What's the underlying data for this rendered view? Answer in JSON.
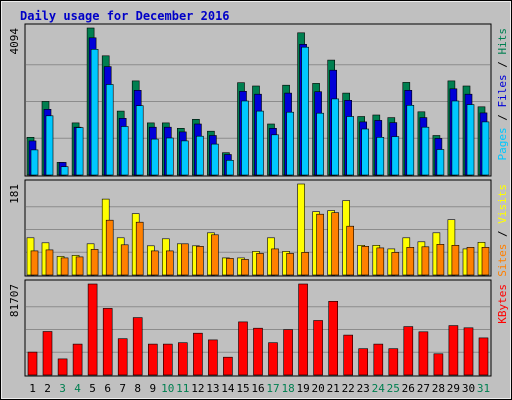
{
  "title": "Daily usage for December 2016",
  "colors": {
    "background": "#c0c0c0",
    "frame": "#000000",
    "gridline": "#8c8c8c",
    "hits": "#007f50",
    "files": "#0000d8",
    "pages": "#00c8ff",
    "visits": "#ffff00",
    "sites": "#ff8000",
    "kbytes": "#ff0000",
    "weekday_label": "#000000",
    "weekend_label": "#007f50"
  },
  "chart_data": {
    "type": "bar",
    "title": "Daily usage for December 2016",
    "categories": [
      "1",
      "2",
      "3",
      "4",
      "5",
      "6",
      "7",
      "8",
      "9",
      "10",
      "11",
      "12",
      "13",
      "14",
      "15",
      "16",
      "17",
      "18",
      "19",
      "20",
      "21",
      "22",
      "23",
      "24",
      "25",
      "26",
      "27",
      "28",
      "29",
      "30",
      "31"
    ],
    "weekend_days": [
      "3",
      "4",
      "10",
      "11",
      "17",
      "18",
      "24",
      "25",
      "31"
    ],
    "panels": [
      {
        "name": "hits-files-pages",
        "axis_max_label": "4094",
        "ylim": [
          0,
          4094
        ],
        "grid": true,
        "legend": [
          {
            "text": "Pages",
            "color_key": "pages"
          },
          {
            "text": "Files",
            "color_key": "files"
          },
          {
            "text": "Hits",
            "color_key": "hits"
          }
        ],
        "series": [
          {
            "name": "Hits",
            "color_key": "hits",
            "values": [
              1050,
              2050,
              350,
              1450,
              4094,
              3320,
              1780,
              2620,
              1450,
              1450,
              1300,
              1550,
              1220,
              620,
              2570,
              2480,
              1420,
              2500,
              3960,
              2550,
              3200,
              2280,
              1630,
              1670,
              1600,
              2580,
              1760,
              1100,
              2620,
              2480,
              1900
            ]
          },
          {
            "name": "Files",
            "color_key": "files",
            "values": [
              950,
              1830,
              350,
              1330,
              3820,
              3020,
              1580,
              2360,
              1330,
              1330,
              1200,
              1420,
              1100,
              570,
              2330,
              2250,
              1300,
              2280,
              3640,
              2320,
              2920,
              2080,
              1480,
              1520,
              1460,
              2360,
              1600,
              1020,
              2400,
              2250,
              1730
            ]
          },
          {
            "name": "Pages",
            "color_key": "pages",
            "values": [
              700,
              1650,
              230,
              1320,
              3500,
              2520,
              1350,
              1930,
              1000,
              1030,
              950,
              1080,
              860,
              410,
              2060,
              1780,
              1120,
              1750,
              3560,
              1720,
              2120,
              1630,
              1280,
              1050,
              1070,
              1940,
              1330,
              710,
              2060,
              1960,
              1480
            ]
          }
        ]
      },
      {
        "name": "visits-sites",
        "axis_max_label": "181",
        "ylim": [
          0,
          181
        ],
        "grid": true,
        "legend": [
          {
            "text": "Sites",
            "color_key": "sites"
          },
          {
            "text": "Visits",
            "color_key": "visits"
          }
        ],
        "series": [
          {
            "name": "Visits",
            "color_key": "visits",
            "values": [
              74,
              64,
              37,
              39,
              62,
              151,
              74,
              122,
              58,
              72,
              62,
              58,
              84,
              34,
              34,
              47,
              74,
              47,
              181,
              126,
              128,
              148,
              59,
              59,
              52,
              74,
              66,
              84,
              110,
              52,
              65
            ]
          },
          {
            "name": "Sites",
            "color_key": "sites",
            "values": [
              48,
              50,
              34,
              36,
              51,
              109,
              60,
              105,
              48,
              48,
              62,
              57,
              80,
              33,
              31,
              43,
              52,
              43,
              45,
              121,
              124,
              97,
              57,
              54,
              45,
              55,
              56,
              61,
              59,
              55,
              55
            ]
          }
        ]
      },
      {
        "name": "kbytes",
        "axis_max_label": "81707",
        "ylim": [
          0,
          81707
        ],
        "grid": true,
        "legend": [
          {
            "text": "KBytes",
            "color_key": "kbytes"
          }
        ],
        "series": [
          {
            "name": "KBytes",
            "color_key": "kbytes",
            "values": [
              20600,
              39100,
              14500,
              27700,
              81707,
              59800,
              32600,
              51500,
              27700,
              27700,
              29000,
              37500,
              31500,
              16000,
              47700,
              42000,
              29000,
              40800,
              81707,
              48900,
              66200,
              35800,
              23600,
              27700,
              23600,
              43500,
              38800,
              19000,
              44400,
              42400,
              33300
            ]
          }
        ]
      }
    ]
  }
}
